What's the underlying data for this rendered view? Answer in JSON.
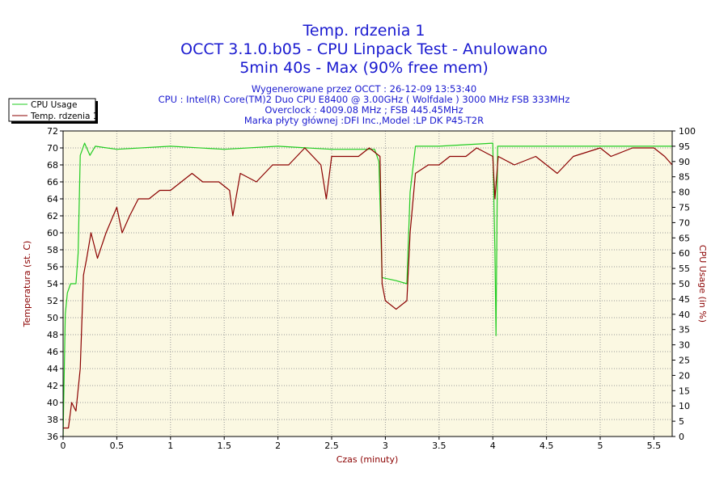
{
  "titles": {
    "line1": "Temp. rdzenia 1",
    "line2": "OCCT 3.1.0.b05 - CPU Linpack Test - Anulowano",
    "line3": "5min 40s - Max (90% free mem)"
  },
  "info": {
    "line1": "Wygenerowane przez OCCT : 26-12-09 13:53:40",
    "line2": "CPU : Intel(R) Core(TM)2 Duo CPU E8400 @ 3.00GHz ( Wolfdale ) 3000 MHz FSB 333MHz",
    "line3": "Overclock : 4009.08 MHz ; FSB 445.45MHz",
    "line4": "Marka płyty głównej :DFI Inc.,Model :LP DK P45-T2R"
  },
  "colors": {
    "cpu_usage": "#22cc22",
    "temperature": "#8b0000",
    "plot_bg": "#fbf8e2",
    "title": "#1a1ad0",
    "grid": "#9a9a9a"
  },
  "chart_data": {
    "type": "line",
    "xlabel": "Czas (minuty)",
    "ylabel_left": "Temperatura (st. C)",
    "ylabel_right": "CPU Usage (in %)",
    "xlim": [
      0,
      5.67
    ],
    "ylim_left": [
      36,
      72
    ],
    "ylim_right": [
      0,
      100
    ],
    "x_ticks": [
      "0",
      "0.5",
      "1",
      "1.5",
      "2",
      "2.5",
      "3",
      "3.5",
      "4",
      "4.5",
      "5",
      "5.5"
    ],
    "x_tick_values": [
      0,
      0.5,
      1,
      1.5,
      2,
      2.5,
      3,
      3.5,
      4,
      4.5,
      5,
      5.5
    ],
    "y_left_ticks": [
      36,
      38,
      40,
      42,
      44,
      46,
      48,
      50,
      52,
      54,
      56,
      58,
      60,
      62,
      64,
      66,
      68,
      70,
      72
    ],
    "y_right_ticks": [
      0,
      5,
      10,
      15,
      20,
      25,
      30,
      35,
      40,
      45,
      50,
      55,
      60,
      65,
      70,
      75,
      80,
      85,
      90,
      95,
      100
    ],
    "grid": true,
    "legend_position": "top-left",
    "series": [
      {
        "name": "CPU Usage",
        "axis": "right",
        "points": [
          [
            0,
            0
          ],
          [
            0.02,
            40
          ],
          [
            0.04,
            47
          ],
          [
            0.07,
            50
          ],
          [
            0.12,
            50
          ],
          [
            0.14,
            60
          ],
          [
            0.16,
            92
          ],
          [
            0.2,
            96
          ],
          [
            0.25,
            92
          ],
          [
            0.3,
            95
          ],
          [
            0.5,
            94
          ],
          [
            1.0,
            95
          ],
          [
            1.5,
            94
          ],
          [
            2.0,
            95
          ],
          [
            2.5,
            94
          ],
          [
            2.9,
            94
          ],
          [
            2.94,
            90
          ],
          [
            2.97,
            52
          ],
          [
            3.1,
            51
          ],
          [
            3.2,
            50
          ],
          [
            3.23,
            80
          ],
          [
            3.28,
            95
          ],
          [
            3.5,
            95
          ],
          [
            4.0,
            96
          ],
          [
            4.02,
            60
          ],
          [
            4.03,
            33
          ],
          [
            4.045,
            95
          ],
          [
            4.5,
            95
          ],
          [
            5.0,
            95
          ],
          [
            5.5,
            95
          ],
          [
            5.67,
            95
          ]
        ]
      },
      {
        "name": "Temp. rdzenia 1",
        "axis": "left",
        "points": [
          [
            0,
            37
          ],
          [
            0.05,
            37
          ],
          [
            0.08,
            40
          ],
          [
            0.12,
            39
          ],
          [
            0.16,
            44
          ],
          [
            0.19,
            55
          ],
          [
            0.22,
            57
          ],
          [
            0.26,
            60
          ],
          [
            0.32,
            57
          ],
          [
            0.4,
            60
          ],
          [
            0.5,
            63
          ],
          [
            0.55,
            60
          ],
          [
            0.62,
            62
          ],
          [
            0.7,
            64
          ],
          [
            0.8,
            64
          ],
          [
            0.9,
            65
          ],
          [
            1.0,
            65
          ],
          [
            1.1,
            66
          ],
          [
            1.2,
            67
          ],
          [
            1.3,
            66
          ],
          [
            1.45,
            66
          ],
          [
            1.55,
            65
          ],
          [
            1.58,
            62
          ],
          [
            1.65,
            67
          ],
          [
            1.8,
            66
          ],
          [
            1.95,
            68
          ],
          [
            2.1,
            68
          ],
          [
            2.25,
            70
          ],
          [
            2.4,
            68
          ],
          [
            2.45,
            64
          ],
          [
            2.5,
            69
          ],
          [
            2.6,
            69
          ],
          [
            2.75,
            69
          ],
          [
            2.85,
            70
          ],
          [
            2.95,
            69
          ],
          [
            2.97,
            54
          ],
          [
            3.0,
            52
          ],
          [
            3.1,
            51
          ],
          [
            3.2,
            52
          ],
          [
            3.23,
            60
          ],
          [
            3.28,
            67
          ],
          [
            3.4,
            68
          ],
          [
            3.5,
            68
          ],
          [
            3.6,
            69
          ],
          [
            3.75,
            69
          ],
          [
            3.85,
            70
          ],
          [
            4.0,
            69
          ],
          [
            4.02,
            64
          ],
          [
            4.05,
            69
          ],
          [
            4.2,
            68
          ],
          [
            4.4,
            69
          ],
          [
            4.5,
            68
          ],
          [
            4.6,
            67
          ],
          [
            4.75,
            69
          ],
          [
            5.0,
            70
          ],
          [
            5.1,
            69
          ],
          [
            5.3,
            70
          ],
          [
            5.5,
            70
          ],
          [
            5.6,
            69
          ],
          [
            5.67,
            68
          ]
        ]
      }
    ]
  }
}
